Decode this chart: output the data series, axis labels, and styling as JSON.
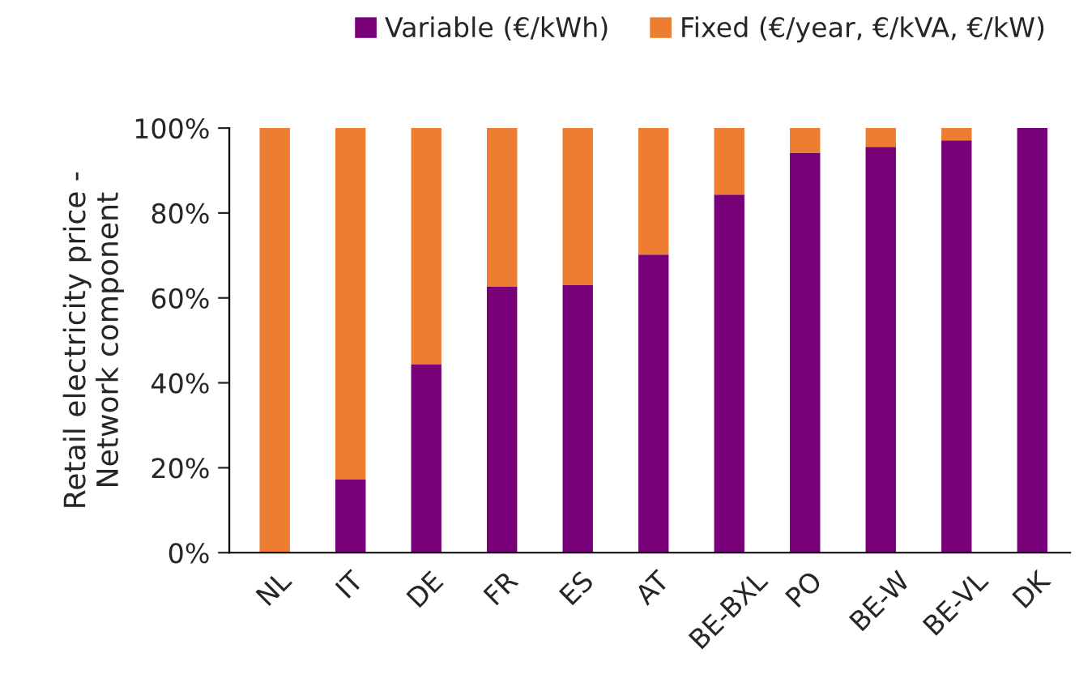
{
  "chart_data": {
    "type": "bar",
    "stacked": true,
    "ylabel": "Retail electricity price -\nNetwork component",
    "categories": [
      "NL",
      "IT",
      "DE",
      "FR",
      "ES",
      "AT",
      "BE-BXL",
      "PO",
      "BE-W",
      "BE-VL",
      "DK"
    ],
    "series": [
      {
        "name": "Variable (€/kWh)",
        "color": "#780078",
        "values": [
          0,
          17.3,
          44.3,
          62.7,
          63.0,
          70.2,
          84.3,
          94.2,
          95.6,
          97.1,
          100
        ]
      },
      {
        "name": "Fixed (€/year, €/kVA, €/kW)",
        "color": "#ed7d31",
        "values": [
          100,
          82.7,
          55.7,
          37.3,
          37.0,
          29.8,
          15.7,
          5.8,
          4.4,
          2.9,
          0
        ]
      }
    ],
    "ylim": [
      0,
      100
    ],
    "yticks": [
      {
        "value": 0,
        "label": "0%"
      },
      {
        "value": 20,
        "label": "20%"
      },
      {
        "value": 40,
        "label": "40%"
      },
      {
        "value": 60,
        "label": "60%"
      },
      {
        "value": 80,
        "label": "80%"
      },
      {
        "value": 100,
        "label": "100%"
      }
    ],
    "grid": false,
    "legend": "top"
  }
}
